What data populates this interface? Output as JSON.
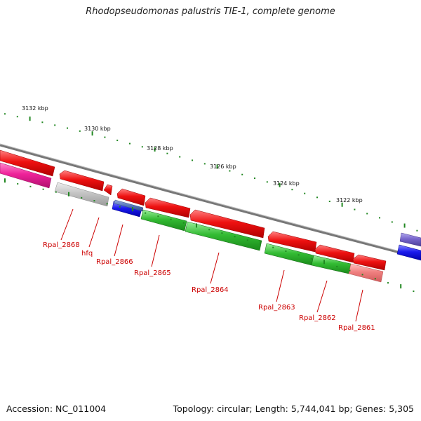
{
  "title": "Rhodopseudomonas palustris TIE-1, complete genome",
  "footer": {
    "accession": "Accession: NC_011004",
    "topology": "Topology: circular; Length: 5,744,041 bp; Genes: 5,305"
  },
  "ruler": [
    {
      "label": "3132 kbp"
    },
    {
      "label": "3130 kbp"
    },
    {
      "label": "3128 kbp"
    },
    {
      "label": "3126 kbp"
    },
    {
      "label": "3124 kbp"
    },
    {
      "label": "3122 kbp"
    }
  ],
  "gene_labels": [
    {
      "label": "Rpal_2868"
    },
    {
      "label": "hfq"
    },
    {
      "label": "Rpal_2866"
    },
    {
      "label": "Rpal_2865"
    },
    {
      "label": "Rpal_2864"
    },
    {
      "label": "Rpal_2863"
    },
    {
      "label": "Rpal_2862"
    },
    {
      "label": "Rpal_2861"
    }
  ],
  "colors": {
    "backbone": "#808080",
    "cds": "#ee1111",
    "gene_grey": "#bdbdbd",
    "gene_magenta": "#ee2299",
    "gene_blue": "#1a1aee",
    "gene_steel": "#5577bb",
    "gene_green": "#33bb33",
    "gene_pink": "#f08080",
    "gene_violet": "#7766cc",
    "tick": "#228822",
    "label": "#cc0000"
  }
}
